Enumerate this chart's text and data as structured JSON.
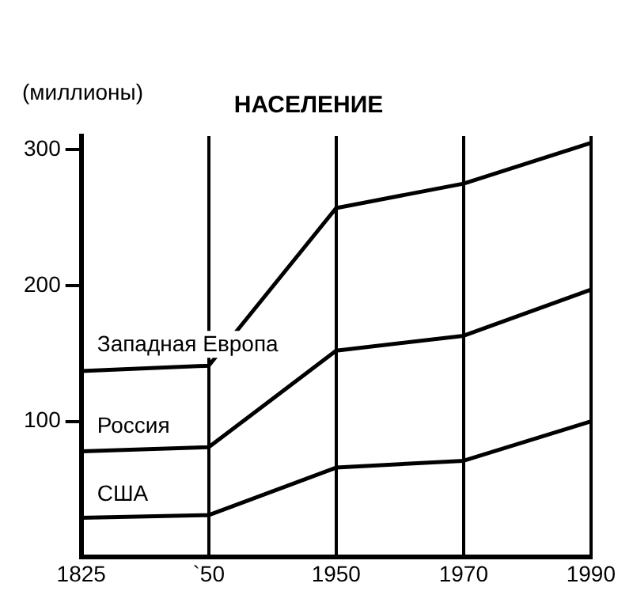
{
  "chart_data": {
    "type": "line",
    "title": "НАСЕЛЕНИЕ",
    "ylabel": "(миллионы)",
    "categories": [
      "1825",
      "`50",
      "1950",
      "1970",
      "1990"
    ],
    "series": [
      {
        "name": "Западная Европа",
        "color": "#000000",
        "values": [
          137,
          141,
          257,
          275,
          305
        ]
      },
      {
        "name": "Россия",
        "color": "#000000",
        "values": [
          78,
          81,
          152,
          163,
          197
        ]
      },
      {
        "name": "США",
        "color": "#000000",
        "values": [
          29,
          31,
          66,
          71,
          100
        ]
      }
    ],
    "ylim": [
      0,
      310
    ],
    "yticks": [
      100,
      200,
      300
    ],
    "grid": "x",
    "legend": false,
    "marker": "none",
    "line_style": "solid"
  }
}
